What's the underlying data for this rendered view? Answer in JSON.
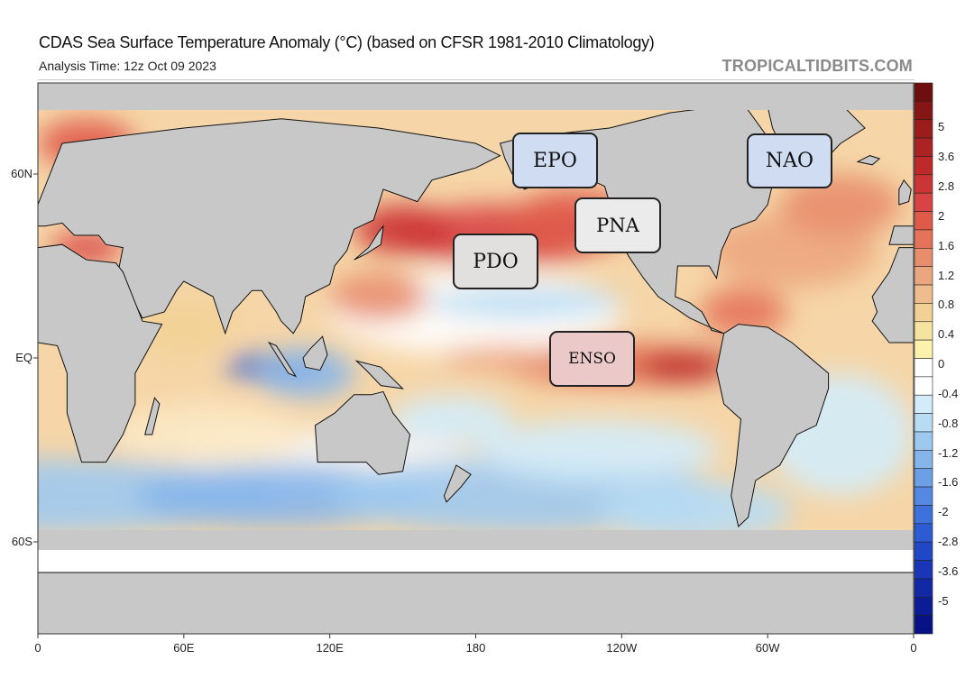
{
  "header": {
    "title": "CDAS Sea Surface Temperature Anomaly (°C) (based on CFSR 1981-2010 Climatology)",
    "analysis_time": "Analysis Time: 12z Oct 09 2023",
    "brand": "TROPICALTIDBITS.COM"
  },
  "overlay_labels": [
    {
      "text": "EPO",
      "fill": "#cfdcf2"
    },
    {
      "text": "NAO",
      "fill": "#cfdcf2"
    },
    {
      "text": "PNA",
      "fill": "#ebebeb"
    },
    {
      "text": "PDO",
      "fill": "#e2dfdf"
    },
    {
      "text": "ENSO",
      "fill": "#ebc9c9"
    }
  ],
  "chart_data": {
    "type": "heatmap",
    "title": "CDAS Sea Surface Temperature Anomaly (°C)",
    "units": "°C",
    "x_ticks": [
      "0",
      "60E",
      "120E",
      "180",
      "120W",
      "60W",
      "0"
    ],
    "x_tick_lon": [
      0,
      60,
      120,
      180,
      240,
      300,
      360
    ],
    "y_ticks": [
      "60N",
      "EQ",
      "60S"
    ],
    "y_tick_lat": [
      60,
      0,
      -60
    ],
    "colorbar": {
      "ticks": [
        "5",
        "3.6",
        "2.8",
        "2",
        "1.6",
        "1.2",
        "0.8",
        "0.4",
        "0",
        "-0.4",
        "-0.8",
        "-1.2",
        "-1.6",
        "-2",
        "-2.8",
        "-3.6",
        "-5"
      ],
      "colors": [
        "#6e0f0f",
        "#861515",
        "#9a1c1c",
        "#ad2222",
        "#be2a2a",
        "#cc3535",
        "#d84444",
        "#e05a4a",
        "#e4735a",
        "#e88d6c",
        "#eca67f",
        "#efbd8d",
        "#f2d195",
        "#f6e39d",
        "#fbf3ab",
        "#ffffff",
        "#ffffff",
        "#d3ecfa",
        "#b7dcf4",
        "#9ec9ef",
        "#86b5ea",
        "#6c9fe6",
        "#5488e2",
        "#3d71dc",
        "#2c5bd4",
        "#2047c6",
        "#1836b6",
        "#1228a5",
        "#0c1c94",
        "#071285"
      ]
    },
    "features": [
      "warm North Pacific anomalies",
      "El Niño warm equatorial Pacific",
      "cool eastern Indian Ocean",
      "cool Southern Ocean"
    ]
  }
}
